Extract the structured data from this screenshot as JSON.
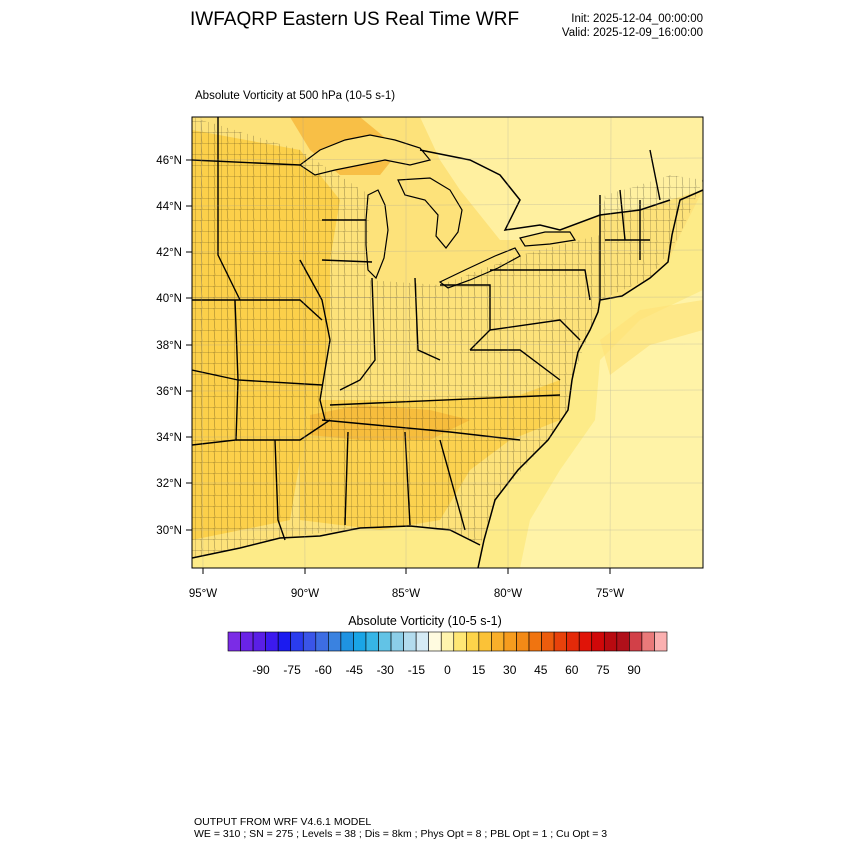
{
  "header": {
    "title": "IWFAQRP Eastern US Real Time WRF",
    "init": "Init: 2025-12-04_00:00:00",
    "valid": "Valid: 2025-12-09_16:00:00"
  },
  "field": {
    "title": "Absolute Vorticity at 500 hPa   (10-5 s-1)"
  },
  "map": {
    "lat_labels": [
      "46°N",
      "44°N",
      "42°N",
      "40°N",
      "38°N",
      "36°N",
      "34°N",
      "32°N",
      "30°N"
    ],
    "lon_labels": [
      "95°W",
      "90°W",
      "85°W",
      "80°W",
      "75°W"
    ],
    "fill_colors": {
      "land_base": "#fbd34e",
      "ocean_base": "#fdeb88",
      "pale": "#fff4ad",
      "light": "#fde27a",
      "medium": "#fcd04a",
      "orange": "#f5b335"
    }
  },
  "colorbar": {
    "title": "Absolute Vorticity  (10-5 s-1)",
    "tick_labels": [
      "-90",
      "-75",
      "-60",
      "-45",
      "-30",
      "-15",
      "0",
      "15",
      "30",
      "45",
      "60",
      "75",
      "90"
    ],
    "colors": [
      "#7b2ce6",
      "#6a23e6",
      "#5a1fe6",
      "#3c1aef",
      "#1b1bf0",
      "#2a3cee",
      "#3a55e8",
      "#3d6de3",
      "#3a82e0",
      "#1f93e2",
      "#1aa5e6",
      "#36b5e6",
      "#62c3e6",
      "#8ccee8",
      "#b3dcee",
      "#d5ebf5",
      "#fffbe0",
      "#fff4ad",
      "#ffe775",
      "#fdd44a",
      "#fbc237",
      "#f9af2a",
      "#f69c1e",
      "#f38a16",
      "#f07410",
      "#ec5c0d",
      "#e8420b",
      "#e42a09",
      "#e01408",
      "#d00809",
      "#b80a10",
      "#b0101a",
      "#d24048",
      "#ea7a7a",
      "#fbb0b0"
    ]
  },
  "footer": {
    "line1": "OUTPUT FROM WRF V4.6.1 MODEL",
    "line2": "WE = 310 ; SN = 275 ; Levels = 38 ; Dis = 8km ; Phys Opt = 8 ; PBL Opt = 1 ; Cu Opt = 3"
  }
}
